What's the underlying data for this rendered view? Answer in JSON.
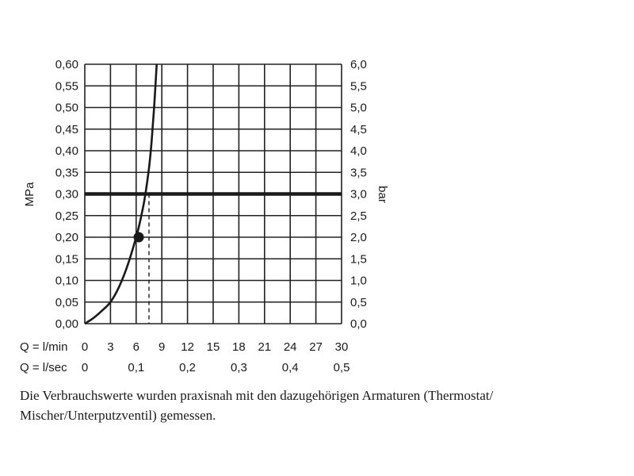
{
  "chart_data": {
    "type": "line",
    "ylabel_left": "MPa",
    "ylabel_right": "bar",
    "x_axes": [
      {
        "label": "Q = l/min",
        "ticks": [
          0,
          3,
          6,
          9,
          12,
          15,
          18,
          21,
          24,
          27,
          30
        ],
        "tick_labels": [
          "0",
          "3",
          "6",
          "9",
          "12",
          "15",
          "18",
          "21",
          "24",
          "27",
          "30"
        ]
      },
      {
        "label": "Q = l/sec",
        "ticks": [
          0,
          0.1,
          0.2,
          0.3,
          0.4,
          0.5
        ],
        "tick_labels": [
          "0",
          "0,1",
          "0,2",
          "0,3",
          "0,4",
          "0,5"
        ]
      }
    ],
    "xlim": [
      0,
      30
    ],
    "ylim": [
      0,
      0.6
    ],
    "y_ticks_left": [
      "0,00",
      "0,05",
      "0,10",
      "0,15",
      "0,20",
      "0,25",
      "0,30",
      "0,35",
      "0,40",
      "0,45",
      "0,50",
      "0,55",
      "0,60"
    ],
    "y_ticks_right": [
      "0,0",
      "0,5",
      "1,0",
      "1,5",
      "2,0",
      "2,5",
      "3,0",
      "3,5",
      "4,0",
      "4,5",
      "5,0",
      "5,5",
      "6,0"
    ],
    "grid": true,
    "series": [
      {
        "x": [
          0,
          1,
          2,
          3,
          4,
          5,
          6,
          6.5,
          7,
          7.5,
          7.8,
          8.1,
          8.4
        ],
        "y": [
          0,
          0.013,
          0.03,
          0.05,
          0.085,
          0.135,
          0.2,
          0.24,
          0.29,
          0.36,
          0.42,
          0.5,
          0.6
        ]
      }
    ],
    "reference_line": {
      "y": 0.3
    },
    "marker": {
      "x": 6.3,
      "y": 0.2
    },
    "dashed_drop": {
      "x": 7.5,
      "y": 0.3
    }
  },
  "caption": "Die Verbrauchswerte wurden praxisnah mit den dazugehörigen Armaturen (Thermostat/ Mischer/Unterputzventil) gemessen."
}
